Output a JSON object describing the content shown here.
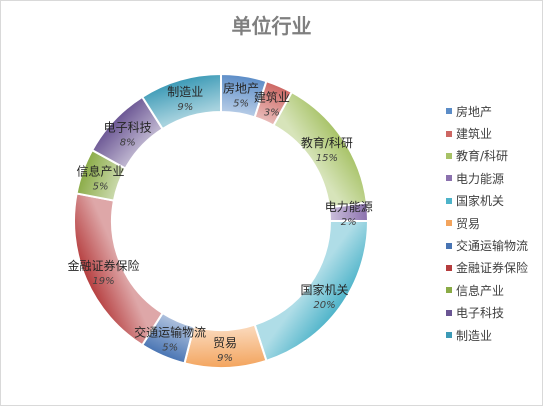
{
  "chart_data": {
    "type": "pie",
    "variant": "doughnut",
    "title": "单位行业",
    "categories": [
      "房地产",
      "建筑业",
      "教育/科研",
      "电力能源",
      "国家机关",
      "贸易",
      "交通运输物流",
      "金融证券保险",
      "信息产业",
      "电子科技",
      "制造业"
    ],
    "values": [
      5,
      3,
      15,
      2,
      20,
      9,
      5,
      19,
      5,
      8,
      9
    ],
    "percent_labels": [
      "5%",
      "3%",
      "15%",
      "2%",
      "20%",
      "9%",
      "5%",
      "19%",
      "5%",
      "8%",
      "9%"
    ],
    "colors": [
      "#5b8cc7",
      "#cd6763",
      "#a7c266",
      "#8b71ae",
      "#4db3c9",
      "#f3a45d",
      "#4874b3",
      "#b53c3d",
      "#8aab46",
      "#6a5593",
      "#3c9ab6"
    ],
    "legend_position": "right",
    "grid": false
  }
}
